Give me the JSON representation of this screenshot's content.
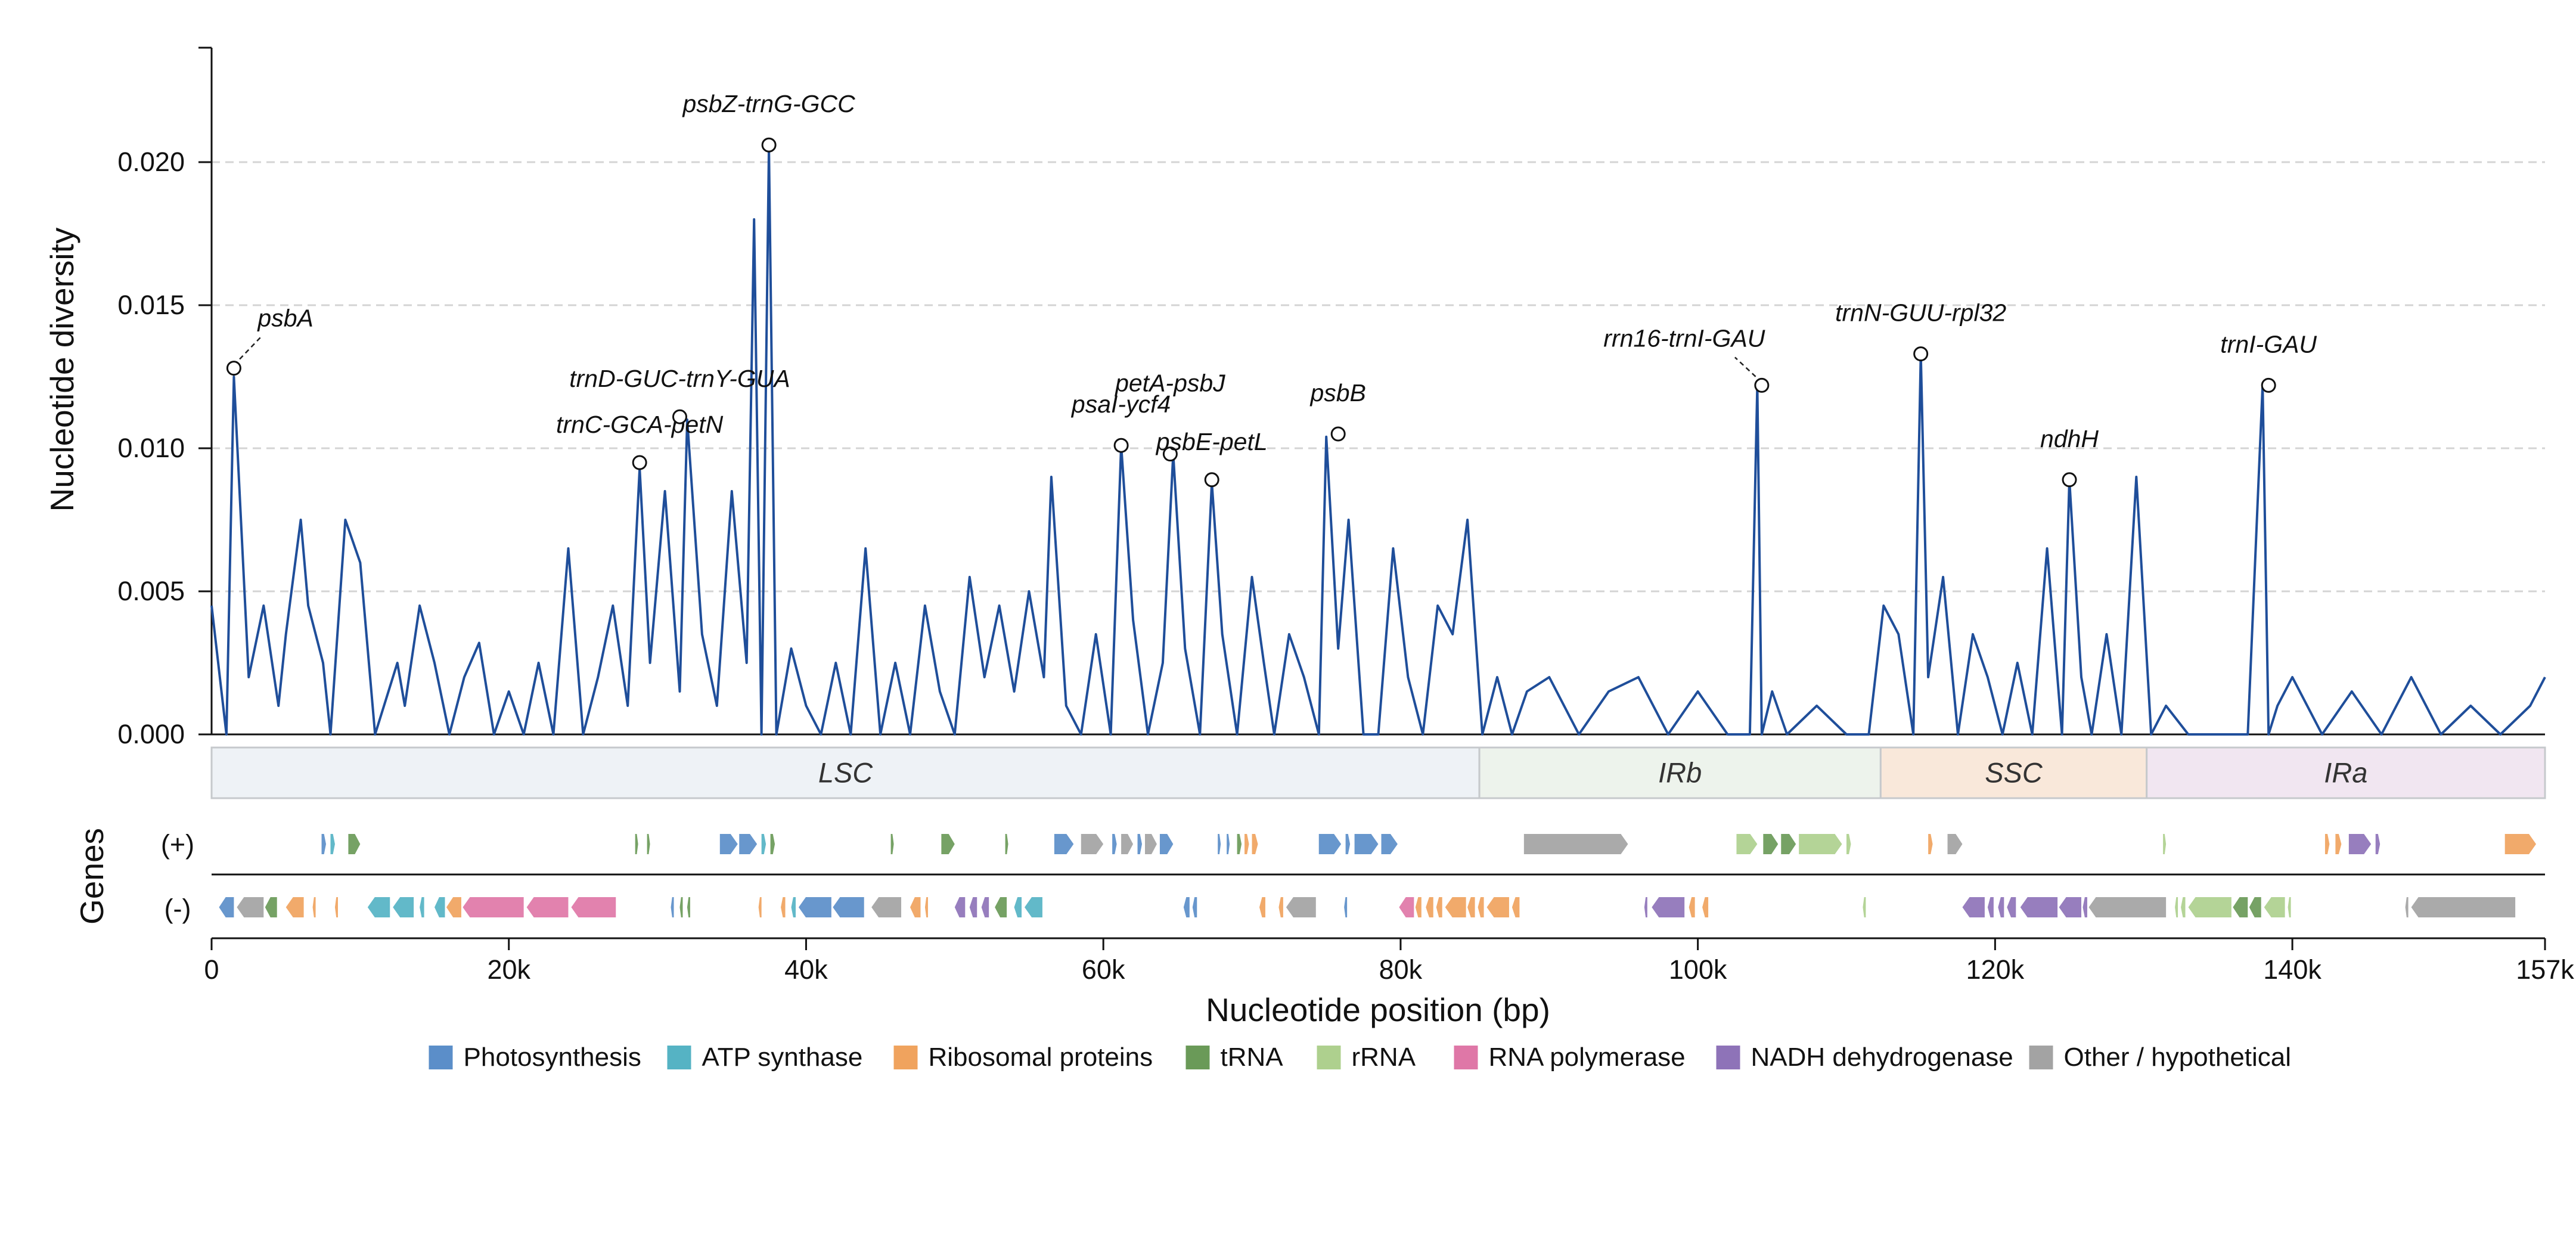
{
  "chart_data": {
    "type": "line",
    "ylabel": "Nucleotide diversity",
    "xlabel": "Nucleotide position (bp)",
    "genes_label": "Genes",
    "strand_plus_label": "(+)",
    "strand_minus_label": "(-)",
    "xlim": [
      0,
      157000
    ],
    "ylim": [
      0,
      0.024
    ],
    "x_ticks": [
      {
        "value": 0,
        "label": "0"
      },
      {
        "value": 20000,
        "label": "20k"
      },
      {
        "value": 40000,
        "label": "40k"
      },
      {
        "value": 60000,
        "label": "60k"
      },
      {
        "value": 80000,
        "label": "80k"
      },
      {
        "value": 100000,
        "label": "100k"
      },
      {
        "value": 120000,
        "label": "120k"
      },
      {
        "value": 140000,
        "label": "140k"
      },
      {
        "value": 157000,
        "label": "157k"
      }
    ],
    "y_ticks": [
      {
        "value": 0,
        "label": "0.000"
      },
      {
        "value": 0.005,
        "label": "0.005"
      },
      {
        "value": 0.01,
        "label": "0.010"
      },
      {
        "value": 0.015,
        "label": "0.015"
      },
      {
        "value": 0.02,
        "label": "0.020"
      }
    ],
    "grid": "horizontal dashed",
    "line_color": "#1f4e9a",
    "series_x": [
      0,
      1000,
      1500,
      2500,
      3500,
      4500,
      5000,
      6000,
      6500,
      7000,
      7500,
      8000,
      9000,
      10000,
      11000,
      12500,
      13000,
      14000,
      15000,
      16000,
      17000,
      18000,
      19000,
      20000,
      21000,
      22000,
      23000,
      24000,
      25000,
      26000,
      27000,
      28000,
      28800,
      29500,
      30500,
      31500,
      32000,
      33000,
      34000,
      35000,
      36000,
      36500,
      37000,
      37500,
      38000,
      39000,
      40000,
      41000,
      42000,
      43000,
      44000,
      45000,
      46000,
      47000,
      48000,
      49000,
      50000,
      51000,
      52000,
      53000,
      54000,
      55000,
      56000,
      56500,
      57500,
      58500,
      59500,
      60500,
      61200,
      62000,
      63000,
      64000,
      64700,
      65500,
      66500,
      67300,
      68000,
      69000,
      70000,
      70800,
      71500,
      72500,
      73500,
      74500,
      75000,
      75800,
      76500,
      77500,
      78500,
      79500,
      80500,
      81500,
      82500,
      83500,
      84500,
      85500,
      86500,
      87500,
      88500,
      90000,
      92000,
      94000,
      96000,
      98000,
      100000,
      102000,
      103500,
      104000,
      104300,
      105000,
      106000,
      108000,
      110000,
      111500,
      112500,
      113500,
      114500,
      115000,
      115500,
      116500,
      117500,
      118500,
      119500,
      120500,
      121500,
      122500,
      123500,
      124500,
      125000,
      125800,
      126500,
      127500,
      128500,
      129500,
      130500,
      131500,
      133000,
      135000,
      137000,
      138000,
      138400,
      139000,
      140000,
      142000,
      144000,
      146000,
      148000,
      150000,
      152000,
      154000,
      156000,
      157000
    ],
    "series_y": [
      0.0045,
      0.0,
      0.0125,
      0.002,
      0.0045,
      0.001,
      0.0035,
      0.0075,
      0.0045,
      0.0035,
      0.0025,
      0.0,
      0.0075,
      0.006,
      0.0,
      0.0025,
      0.001,
      0.0045,
      0.0025,
      0.0,
      0.002,
      0.0032,
      0.0,
      0.0015,
      0.0,
      0.0025,
      0.0,
      0.0065,
      0.0,
      0.002,
      0.0045,
      0.001,
      0.0093,
      0.0025,
      0.0085,
      0.0015,
      0.011,
      0.0035,
      0.001,
      0.0085,
      0.0025,
      0.018,
      0.0,
      0.0205,
      0.0,
      0.003,
      0.001,
      0.0,
      0.0025,
      0.0,
      0.0065,
      0.0,
      0.0025,
      0.0,
      0.0045,
      0.0015,
      0.0,
      0.0055,
      0.002,
      0.0045,
      0.0015,
      0.005,
      0.002,
      0.009,
      0.001,
      0.0,
      0.0035,
      0.0,
      0.0101,
      0.004,
      0.0,
      0.0025,
      0.0098,
      0.003,
      0.0,
      0.0088,
      0.0035,
      0.0,
      0.0055,
      0.0025,
      0.0,
      0.0035,
      0.002,
      0.0,
      0.0104,
      0.003,
      0.0075,
      0.0,
      0.0,
      0.0065,
      0.002,
      0.0,
      0.0045,
      0.0035,
      0.0075,
      0.0,
      0.002,
      0.0,
      0.0015,
      0.002,
      0.0,
      0.0015,
      0.002,
      0.0,
      0.0015,
      0.0,
      0.0,
      0.0122,
      0.0,
      0.0015,
      0.0,
      0.001,
      0.0,
      0.0,
      0.0045,
      0.0035,
      0.0,
      0.0133,
      0.002,
      0.0055,
      0.0,
      0.0035,
      0.002,
      0.0,
      0.0025,
      0.0,
      0.0065,
      0.0,
      0.0089,
      0.002,
      0.0,
      0.0035,
      0.0,
      0.009,
      0.0,
      0.001,
      0.0,
      0.0,
      0.0,
      0.0122,
      0.0,
      0.001,
      0.002,
      0.0,
      0.0015,
      0.0,
      0.002,
      0.0,
      0.001,
      0.0,
      0.001,
      0.002
    ],
    "peaks": [
      {
        "label": "psbA",
        "x": 1500,
        "y": 0.0128
      },
      {
        "label": "trnC-GCA-petN",
        "x": 28800,
        "y": 0.0095
      },
      {
        "label": "trnD-GUC-trnY-GUA",
        "x": 31500,
        "y": 0.0111
      },
      {
        "label": "psbZ-trnG-GCC",
        "x": 37500,
        "y": 0.0206
      },
      {
        "label": "psaI-ycf4",
        "x": 61200,
        "y": 0.0101
      },
      {
        "label": "petA-psbJ",
        "x": 64500,
        "y": 0.0098
      },
      {
        "label": "psbE-petL",
        "x": 67300,
        "y": 0.0089
      },
      {
        "label": "psbB",
        "x": 75800,
        "y": 0.0105
      },
      {
        "label": "rrn16-trnI-GAU",
        "x": 104300,
        "y": 0.0122
      },
      {
        "label": "trnN-GUU-rpl32",
        "x": 115000,
        "y": 0.0133
      },
      {
        "label": "ndhH",
        "x": 125000,
        "y": 0.0089
      },
      {
        "label": "trnI-GAU",
        "x": 138400,
        "y": 0.0122
      }
    ],
    "regions": [
      {
        "label": "LSC",
        "start": 0,
        "end": 85300,
        "color": "#eef2f6"
      },
      {
        "label": "IRb",
        "start": 85300,
        "end": 112300,
        "color": "#edf3ec"
      },
      {
        "label": "SSC",
        "start": 112300,
        "end": 130200,
        "color": "#f9e8da"
      },
      {
        "label": "IRa",
        "start": 130200,
        "end": 157000,
        "color": "#f1e6f1"
      }
    ],
    "legend": [
      {
        "name": "Photosynthesis",
        "color": "#5b8ec9"
      },
      {
        "name": "ATP synthase",
        "color": "#55b3c4"
      },
      {
        "name": "Ribosomal proteins",
        "color": "#f0a35e"
      },
      {
        "name": "tRNA",
        "color": "#6a9a58"
      },
      {
        "name": "rRNA",
        "color": "#aed08e"
      },
      {
        "name": "RNA polymerase",
        "color": "#df77a7"
      },
      {
        "name": "NADH dehydrogenase",
        "color": "#8e73b8"
      },
      {
        "name": "Other / hypothetical",
        "color": "#a3a3a3"
      }
    ],
    "genes_plus": [
      {
        "start": 7400,
        "end": 7700,
        "cat": "Photosynthesis"
      },
      {
        "start": 8000,
        "end": 8300,
        "cat": "ATP synthase"
      },
      {
        "start": 9200,
        "end": 10000,
        "cat": "tRNA"
      },
      {
        "start": 28500,
        "end": 28700,
        "cat": "tRNA"
      },
      {
        "start": 29300,
        "end": 29500,
        "cat": "tRNA"
      },
      {
        "start": 34200,
        "end": 35400,
        "cat": "Photosynthesis"
      },
      {
        "start": 35500,
        "end": 36700,
        "cat": "Photosynthesis"
      },
      {
        "start": 37000,
        "end": 37300,
        "cat": "ATP synthase"
      },
      {
        "start": 37600,
        "end": 37900,
        "cat": "tRNA"
      },
      {
        "start": 45700,
        "end": 45900,
        "cat": "tRNA"
      },
      {
        "start": 49100,
        "end": 50000,
        "cat": "tRNA"
      },
      {
        "start": 53400,
        "end": 53600,
        "cat": "tRNA"
      },
      {
        "start": 56700,
        "end": 58000,
        "cat": "Photosynthesis"
      },
      {
        "start": 58500,
        "end": 60000,
        "cat": "Other / hypothetical"
      },
      {
        "start": 60600,
        "end": 60900,
        "cat": "Photosynthesis"
      },
      {
        "start": 61200,
        "end": 62000,
        "cat": "Other / hypothetical"
      },
      {
        "start": 62300,
        "end": 62600,
        "cat": "Photosynthesis"
      },
      {
        "start": 62800,
        "end": 63600,
        "cat": "Other / hypothetical"
      },
      {
        "start": 63800,
        "end": 64700,
        "cat": "Photosynthesis"
      },
      {
        "start": 67700,
        "end": 67900,
        "cat": "Photosynthesis"
      },
      {
        "start": 68300,
        "end": 68500,
        "cat": "Photosynthesis"
      },
      {
        "start": 69000,
        "end": 69300,
        "cat": "tRNA"
      },
      {
        "start": 69500,
        "end": 69800,
        "cat": "Ribosomal proteins"
      },
      {
        "start": 70000,
        "end": 70400,
        "cat": "Ribosomal proteins"
      },
      {
        "start": 74500,
        "end": 76000,
        "cat": "Photosynthesis"
      },
      {
        "start": 76300,
        "end": 76600,
        "cat": "Photosynthesis"
      },
      {
        "start": 76900,
        "end": 78500,
        "cat": "Photosynthesis"
      },
      {
        "start": 78700,
        "end": 79800,
        "cat": "Photosynthesis"
      },
      {
        "start": 88300,
        "end": 95300,
        "cat": "Other / hypothetical"
      },
      {
        "start": 102600,
        "end": 104000,
        "cat": "rRNA"
      },
      {
        "start": 104400,
        "end": 105400,
        "cat": "tRNA"
      },
      {
        "start": 105600,
        "end": 106600,
        "cat": "tRNA"
      },
      {
        "start": 106800,
        "end": 109700,
        "cat": "rRNA"
      },
      {
        "start": 110000,
        "end": 110300,
        "cat": "rRNA"
      },
      {
        "start": 115500,
        "end": 115800,
        "cat": "Ribosomal proteins"
      },
      {
        "start": 116800,
        "end": 117800,
        "cat": "Other / hypothetical"
      },
      {
        "start": 131300,
        "end": 131500,
        "cat": "rRNA"
      },
      {
        "start": 142200,
        "end": 142500,
        "cat": "Ribosomal proteins"
      },
      {
        "start": 142900,
        "end": 143300,
        "cat": "Ribosomal proteins"
      },
      {
        "start": 143800,
        "end": 145300,
        "cat": "NADH dehydrogenase"
      },
      {
        "start": 145600,
        "end": 145900,
        "cat": "NADH dehydrogenase"
      },
      {
        "start": 154300,
        "end": 156400,
        "cat": "Ribosomal proteins"
      }
    ],
    "genes_minus": [
      {
        "start": 500,
        "end": 1500,
        "cat": "Photosynthesis"
      },
      {
        "start": 1700,
        "end": 3500,
        "cat": "Other / hypothetical"
      },
      {
        "start": 3600,
        "end": 4400,
        "cat": "tRNA"
      },
      {
        "start": 5000,
        "end": 6200,
        "cat": "Ribosomal proteins"
      },
      {
        "start": 6800,
        "end": 7000,
        "cat": "Ribosomal proteins"
      },
      {
        "start": 8300,
        "end": 8500,
        "cat": "Ribosomal proteins"
      },
      {
        "start": 10500,
        "end": 12000,
        "cat": "ATP synthase"
      },
      {
        "start": 12200,
        "end": 13600,
        "cat": "ATP synthase"
      },
      {
        "start": 14000,
        "end": 14300,
        "cat": "ATP synthase"
      },
      {
        "start": 15000,
        "end": 15700,
        "cat": "ATP synthase"
      },
      {
        "start": 15800,
        "end": 16800,
        "cat": "Ribosomal proteins"
      },
      {
        "start": 16900,
        "end": 21000,
        "cat": "RNA polymerase"
      },
      {
        "start": 21200,
        "end": 24000,
        "cat": "RNA polymerase"
      },
      {
        "start": 24200,
        "end": 27200,
        "cat": "RNA polymerase"
      },
      {
        "start": 30900,
        "end": 31100,
        "cat": "Photosynthesis"
      },
      {
        "start": 31500,
        "end": 31700,
        "cat": "tRNA"
      },
      {
        "start": 32000,
        "end": 32200,
        "cat": "tRNA"
      },
      {
        "start": 36800,
        "end": 37000,
        "cat": "Ribosomal proteins"
      },
      {
        "start": 38300,
        "end": 38600,
        "cat": "Ribosomal proteins"
      },
      {
        "start": 39000,
        "end": 39300,
        "cat": "ATP synthase"
      },
      {
        "start": 39500,
        "end": 41700,
        "cat": "Photosynthesis"
      },
      {
        "start": 41800,
        "end": 43900,
        "cat": "Photosynthesis"
      },
      {
        "start": 44400,
        "end": 46400,
        "cat": "Other / hypothetical"
      },
      {
        "start": 47000,
        "end": 47700,
        "cat": "Ribosomal proteins"
      },
      {
        "start": 48000,
        "end": 48200,
        "cat": "Ribosomal proteins"
      },
      {
        "start": 50000,
        "end": 50700,
        "cat": "NADH dehydrogenase"
      },
      {
        "start": 51000,
        "end": 51500,
        "cat": "NADH dehydrogenase"
      },
      {
        "start": 51800,
        "end": 52300,
        "cat": "NADH dehydrogenase"
      },
      {
        "start": 52700,
        "end": 53500,
        "cat": "tRNA"
      },
      {
        "start": 54000,
        "end": 54500,
        "cat": "ATP synthase"
      },
      {
        "start": 54700,
        "end": 55900,
        "cat": "ATP synthase"
      },
      {
        "start": 65400,
        "end": 65800,
        "cat": "Photosynthesis"
      },
      {
        "start": 66000,
        "end": 66300,
        "cat": "Photosynthesis"
      },
      {
        "start": 70500,
        "end": 70900,
        "cat": "Ribosomal proteins"
      },
      {
        "start": 71800,
        "end": 72100,
        "cat": "Ribosomal proteins"
      },
      {
        "start": 72300,
        "end": 74300,
        "cat": "Other / hypothetical"
      },
      {
        "start": 76200,
        "end": 76400,
        "cat": "Photosynthesis"
      },
      {
        "start": 79900,
        "end": 80900,
        "cat": "RNA polymerase"
      },
      {
        "start": 81000,
        "end": 81400,
        "cat": "Ribosomal proteins"
      },
      {
        "start": 81700,
        "end": 82200,
        "cat": "Ribosomal proteins"
      },
      {
        "start": 82400,
        "end": 82800,
        "cat": "Ribosomal proteins"
      },
      {
        "start": 83000,
        "end": 84400,
        "cat": "Ribosomal proteins"
      },
      {
        "start": 84500,
        "end": 85000,
        "cat": "Ribosomal proteins"
      },
      {
        "start": 85200,
        "end": 85600,
        "cat": "Ribosomal proteins"
      },
      {
        "start": 85800,
        "end": 87300,
        "cat": "Ribosomal proteins"
      },
      {
        "start": 87500,
        "end": 88000,
        "cat": "Ribosomal proteins"
      },
      {
        "start": 96400,
        "end": 96600,
        "cat": "NADH dehydrogenase"
      },
      {
        "start": 96900,
        "end": 99100,
        "cat": "NADH dehydrogenase"
      },
      {
        "start": 99400,
        "end": 99800,
        "cat": "Ribosomal proteins"
      },
      {
        "start": 100300,
        "end": 100700,
        "cat": "Ribosomal proteins"
      },
      {
        "start": 111100,
        "end": 111300,
        "cat": "rRNA"
      },
      {
        "start": 117800,
        "end": 119300,
        "cat": "NADH dehydrogenase"
      },
      {
        "start": 119500,
        "end": 119900,
        "cat": "NADH dehydrogenase"
      },
      {
        "start": 120200,
        "end": 120600,
        "cat": "NADH dehydrogenase"
      },
      {
        "start": 120800,
        "end": 121400,
        "cat": "NADH dehydrogenase"
      },
      {
        "start": 121700,
        "end": 124200,
        "cat": "NADH dehydrogenase"
      },
      {
        "start": 124300,
        "end": 125800,
        "cat": "NADH dehydrogenase"
      },
      {
        "start": 125900,
        "end": 126200,
        "cat": "NADH dehydrogenase"
      },
      {
        "start": 126300,
        "end": 131500,
        "cat": "Other / hypothetical"
      },
      {
        "start": 132100,
        "end": 132300,
        "cat": "rRNA"
      },
      {
        "start": 132500,
        "end": 132800,
        "cat": "rRNA"
      },
      {
        "start": 133000,
        "end": 135900,
        "cat": "rRNA"
      },
      {
        "start": 136000,
        "end": 137000,
        "cat": "tRNA"
      },
      {
        "start": 137100,
        "end": 137900,
        "cat": "tRNA"
      },
      {
        "start": 138100,
        "end": 139500,
        "cat": "rRNA"
      },
      {
        "start": 139700,
        "end": 139900,
        "cat": "rRNA"
      },
      {
        "start": 147600,
        "end": 147800,
        "cat": "Other / hypothetical"
      },
      {
        "start": 148000,
        "end": 155000,
        "cat": "Other / hypothetical"
      }
    ]
  }
}
